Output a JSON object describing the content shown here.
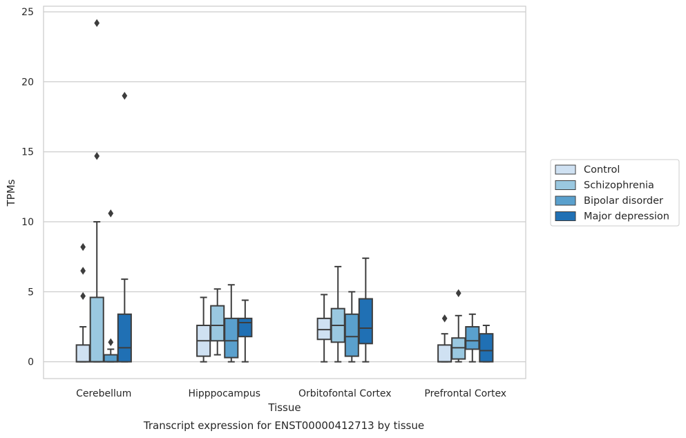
{
  "chart_data": {
    "type": "box",
    "title": "Transcript expression for ENST00000412713 by tissue",
    "xlabel": "Tissue",
    "ylabel": "TPMs",
    "ylim": [
      -1.2,
      25.4
    ],
    "yticks": [
      0,
      5,
      10,
      15,
      20,
      25
    ],
    "grid": true,
    "legend_position": "right",
    "categories": [
      "Cerebellum",
      "Hipppocampus",
      "Orbitofontal Cortex",
      "Prefrontal Cortex"
    ],
    "series": [
      {
        "name": "Control",
        "color": "#cfe1f2",
        "boxes": [
          {
            "whislo": 0,
            "q1": 0,
            "med": 0,
            "q3": 1.2,
            "whishi": 2.5,
            "fliers": [
              4.7,
              6.5,
              8.2
            ]
          },
          {
            "whislo": 0,
            "q1": 0.4,
            "med": 1.5,
            "q3": 2.6,
            "whishi": 4.6,
            "fliers": []
          },
          {
            "whislo": 0,
            "q1": 1.6,
            "med": 2.3,
            "q3": 3.1,
            "whishi": 4.8,
            "fliers": []
          },
          {
            "whislo": 0,
            "q1": 0,
            "med": 0,
            "q3": 1.2,
            "whishi": 2.0,
            "fliers": [
              3.1
            ]
          }
        ]
      },
      {
        "name": "Schizophrenia",
        "color": "#9ac8e0",
        "boxes": [
          {
            "whislo": 0,
            "q1": 0,
            "med": 0,
            "q3": 4.6,
            "whishi": 10.0,
            "fliers": [
              14.7,
              24.2
            ]
          },
          {
            "whislo": 0.5,
            "q1": 1.5,
            "med": 2.6,
            "q3": 4.0,
            "whishi": 5.2,
            "fliers": []
          },
          {
            "whislo": 0,
            "q1": 1.4,
            "med": 2.6,
            "q3": 3.8,
            "whishi": 6.8,
            "fliers": []
          },
          {
            "whislo": 0,
            "q1": 0.2,
            "med": 1.0,
            "q3": 1.7,
            "whishi": 3.3,
            "fliers": [
              4.9
            ]
          }
        ]
      },
      {
        "name": "Bipolar disorder",
        "color": "#5aa0cd",
        "boxes": [
          {
            "whislo": 0,
            "q1": 0,
            "med": 0,
            "q3": 0.5,
            "whishi": 0.9,
            "fliers": [
              1.4,
              10.6
            ]
          },
          {
            "whislo": 0,
            "q1": 0.3,
            "med": 1.5,
            "q3": 3.1,
            "whishi": 5.5,
            "fliers": []
          },
          {
            "whislo": 0,
            "q1": 0.4,
            "med": 1.8,
            "q3": 3.4,
            "whishi": 5.0,
            "fliers": []
          },
          {
            "whislo": 0,
            "q1": 0.9,
            "med": 1.5,
            "q3": 2.5,
            "whishi": 3.4,
            "fliers": []
          }
        ]
      },
      {
        "name": "Major depression",
        "color": "#2070b4",
        "boxes": [
          {
            "whislo": 0,
            "q1": 0,
            "med": 1.0,
            "q3": 3.4,
            "whishi": 5.9,
            "fliers": [
              19.0
            ]
          },
          {
            "whislo": 0,
            "q1": 1.8,
            "med": 2.8,
            "q3": 3.1,
            "whishi": 4.4,
            "fliers": []
          },
          {
            "whislo": 0,
            "q1": 1.3,
            "med": 2.4,
            "q3": 4.5,
            "whishi": 7.4,
            "fliers": []
          },
          {
            "whislo": 0,
            "q1": 0,
            "med": 0.8,
            "q3": 2.0,
            "whishi": 2.6,
            "fliers": []
          }
        ]
      }
    ]
  }
}
